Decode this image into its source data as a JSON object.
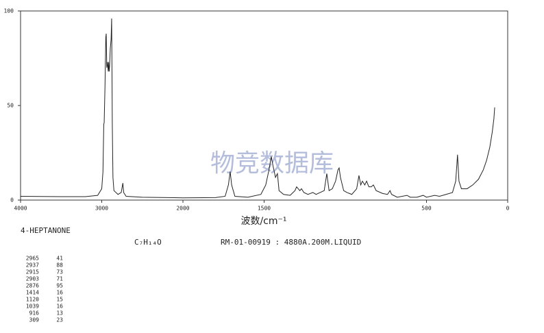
{
  "chart_data": {
    "type": "line",
    "title": "4-HEPTANONE",
    "formula": "C₇H₁₄O",
    "subtitle": "RM-01-00919 : 4880A.200M.LIQUID",
    "xlabel": "波数/cm⁻¹",
    "watermark": "物竞数据库",
    "xlim": [
      4000,
      0
    ],
    "ylim": [
      0,
      100
    ],
    "xbreak": 2000,
    "xbreak_scale": 0.5,
    "xticks": [
      4000,
      3000,
      2000,
      1500,
      500,
      0
    ],
    "yticks": [
      0,
      50,
      100
    ],
    "series": [
      {
        "color": "#222222",
        "x": [
          4000,
          3500,
          3200,
          3050,
          3000,
          2985,
          2975,
          2970,
          2960,
          2950,
          2945,
          2938,
          2930,
          2920,
          2915,
          2908,
          2903,
          2895,
          2885,
          2878,
          2870,
          2862,
          2850,
          2800,
          2760,
          2740,
          2730,
          2700,
          2500,
          2000,
          1800,
          1740,
          1720,
          1709,
          1700,
          1680,
          1600,
          1520,
          1490,
          1470,
          1456,
          1445,
          1430,
          1418,
          1408,
          1380,
          1340,
          1310,
          1300,
          1290,
          1280,
          1270,
          1255,
          1230,
          1200,
          1180,
          1130,
          1114,
          1100,
          1080,
          1060,
          1045,
          1038,
          1030,
          1010,
          990,
          960,
          930,
          916,
          905,
          895,
          880,
          869,
          855,
          840,
          827,
          810,
          770,
          740,
          725,
          715,
          680,
          620,
          600,
          560,
          520,
          500,
          450,
          420,
          380,
          340,
          320,
          309,
          300,
          285,
          250,
          215,
          180,
          150,
          130,
          110,
          95,
          85,
          80
        ],
        "values": [
          2,
          1.8,
          1.8,
          2.5,
          6,
          15,
          40,
          41,
          60,
          86,
          88,
          70,
          73,
          68,
          73,
          68,
          71,
          80,
          85,
          96,
          40,
          12,
          5,
          3,
          4,
          9,
          4,
          2,
          1.5,
          1.2,
          1.3,
          2,
          8,
          15,
          8,
          2,
          1.5,
          3,
          8,
          16,
          23,
          18,
          12,
          14,
          5,
          3,
          2.5,
          5,
          7,
          6,
          5,
          6,
          4,
          3,
          4,
          3,
          5,
          14,
          5,
          6,
          10,
          16,
          17,
          12,
          5,
          4,
          3,
          6,
          13,
          8,
          10,
          8,
          10,
          7,
          7,
          8,
          5,
          3.5,
          3,
          5,
          3,
          1.5,
          2.5,
          1.5,
          1.5,
          2.5,
          1.5,
          2.5,
          2,
          3,
          4,
          10,
          24,
          10,
          6,
          6,
          8,
          11,
          16,
          21,
          28,
          36,
          43,
          49
        ]
      }
    ],
    "peaks": [
      [
        2965,
        41
      ],
      [
        2937,
        88
      ],
      [
        2915,
        73
      ],
      [
        2903,
        71
      ],
      [
        2876,
        95
      ],
      [
        1414,
        16
      ],
      [
        1120,
        15
      ],
      [
        1039,
        16
      ],
      [
        916,
        13
      ],
      [
        309,
        23
      ]
    ]
  }
}
